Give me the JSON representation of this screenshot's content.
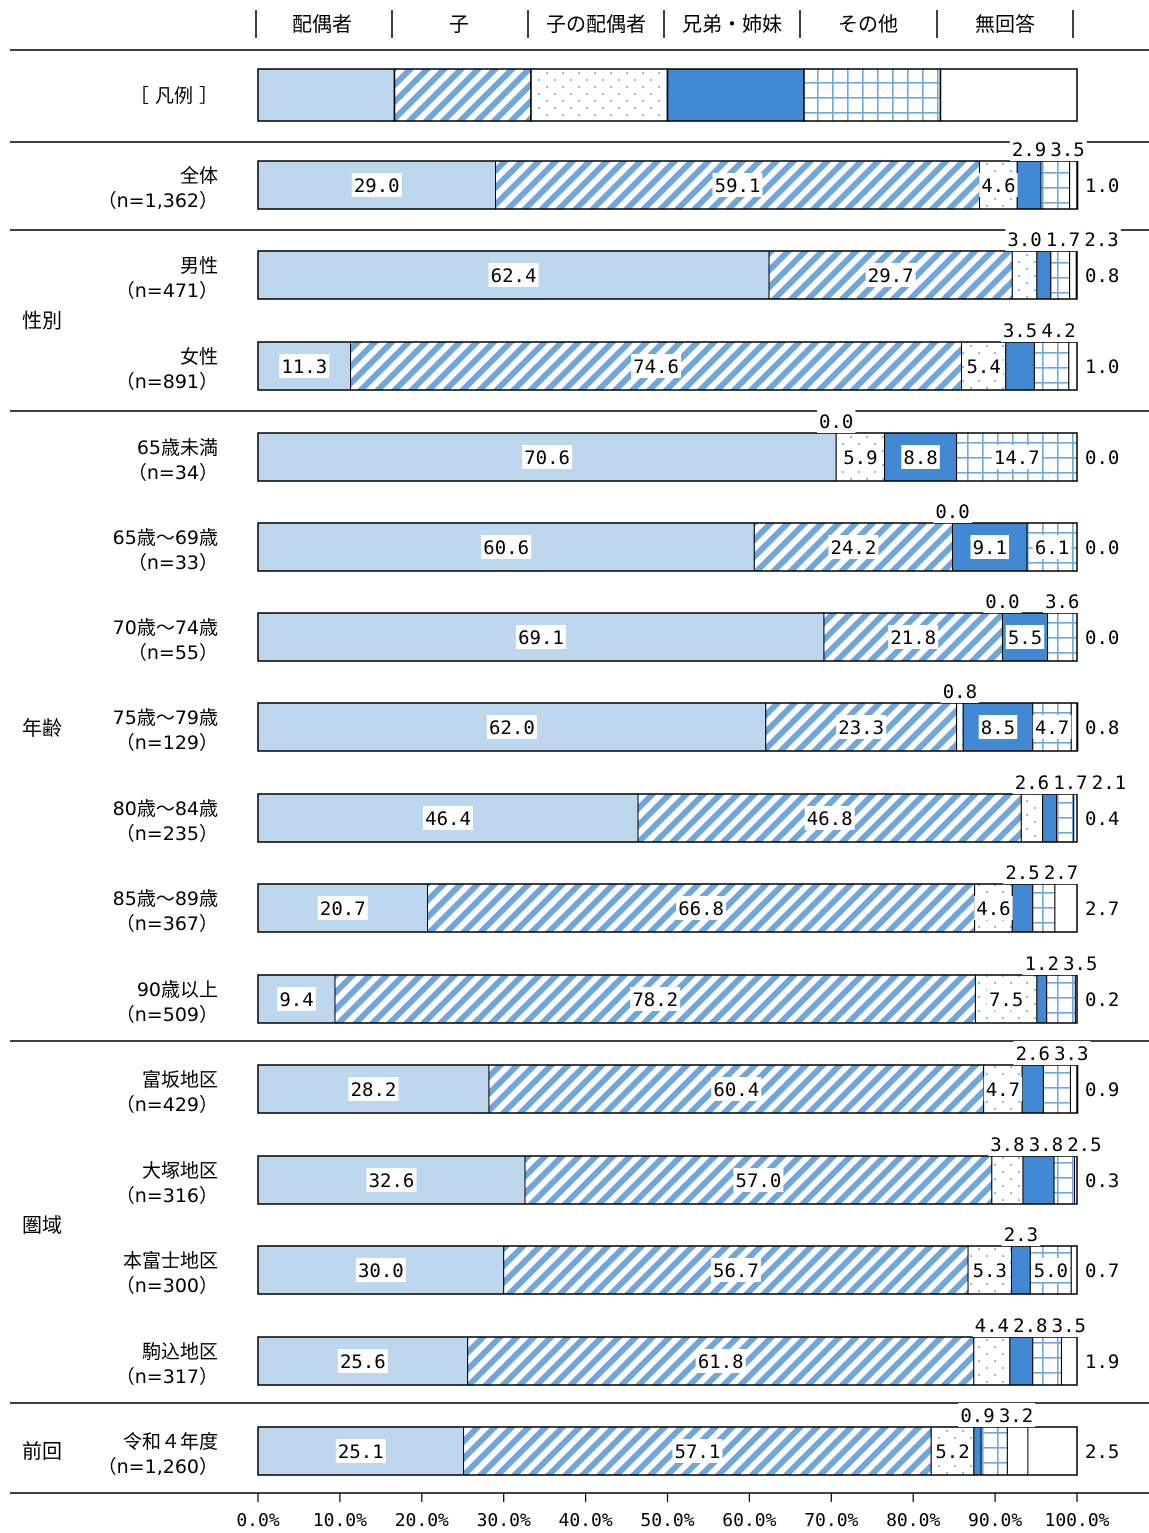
{
  "chart_data": {
    "type": "bar",
    "orientation": "horizontal",
    "stacked": true,
    "percent": true,
    "legend_title": "［ 凡例 ］",
    "legend_placement": "top",
    "categories_legend": [
      "配偶者",
      "子",
      "子の配偶者",
      "兄弟・姉妹",
      "その他",
      "無回答"
    ],
    "colors": {
      "light_blue": "#bdd7ee",
      "blue": "#4189d2",
      "stripe_blue": "#6fa6de",
      "outline": "#000000"
    },
    "xlim": [
      0,
      100
    ],
    "ticks": [
      "0.0%",
      "10.0%",
      "20.0%",
      "30.0%",
      "40.0%",
      "50.0%",
      "60.0%",
      "70.0%",
      "80.0%",
      "90.0%",
      "100.0%"
    ],
    "groups": [
      {
        "name": "",
        "rows": [
          0
        ]
      },
      {
        "name": "性別",
        "rows": [
          1,
          2
        ]
      },
      {
        "name": "年齢",
        "rows": [
          3,
          4,
          5,
          6,
          7,
          8,
          9
        ]
      },
      {
        "name": "圏域",
        "rows": [
          10,
          11,
          12,
          13
        ]
      },
      {
        "name": "前回",
        "rows": [
          14
        ]
      }
    ],
    "rows": [
      {
        "label": "全体",
        "n": "（n=1,362）",
        "values": [
          29.0,
          59.1,
          4.6,
          2.9,
          3.5,
          1.0
        ],
        "labels": [
          "29.0",
          "59.1",
          "4.6",
          "2.9",
          "3.5",
          "1.0"
        ]
      },
      {
        "label": "男性",
        "n": "（n=471）",
        "values": [
          62.4,
          29.7,
          3.0,
          1.7,
          2.3,
          0.8
        ],
        "labels": [
          "62.4",
          "29.7",
          "3.0",
          "1.7",
          "2.3",
          "0.8"
        ]
      },
      {
        "label": "女性",
        "n": "（n=891）",
        "values": [
          11.3,
          74.6,
          5.4,
          3.5,
          4.2,
          1.0
        ],
        "labels": [
          "11.3",
          "74.6",
          "5.4",
          "3.5",
          "4.2",
          "1.0"
        ]
      },
      {
        "label": "65歳未満",
        "n": "（n=34）",
        "values": [
          70.6,
          0.0,
          5.9,
          8.8,
          14.7,
          0.0
        ],
        "labels": [
          "70.6",
          "0.0",
          "5.9",
          "8.8",
          "14.7",
          "0.0"
        ]
      },
      {
        "label": "65歳～69歳",
        "n": "（n=33）",
        "values": [
          60.6,
          24.2,
          0.0,
          9.1,
          6.1,
          0.0
        ],
        "labels": [
          "60.6",
          "24.2",
          "0.0",
          "9.1",
          "6.1",
          "0.0"
        ]
      },
      {
        "label": "70歳～74歳",
        "n": "（n=55）",
        "values": [
          69.1,
          21.8,
          0.0,
          5.5,
          3.6,
          0.0
        ],
        "labels": [
          "69.1",
          "21.8",
          "0.0",
          "5.5",
          "3.6",
          "0.0"
        ]
      },
      {
        "label": "75歳～79歳",
        "n": "（n=129）",
        "values": [
          62.0,
          23.3,
          0.8,
          8.5,
          4.7,
          0.8
        ],
        "labels": [
          "62.0",
          "23.3",
          "0.8",
          "8.5",
          "4.7",
          "0.8"
        ]
      },
      {
        "label": "80歳～84歳",
        "n": "（n=235）",
        "values": [
          46.4,
          46.8,
          2.6,
          1.7,
          2.1,
          0.4
        ],
        "labels": [
          "46.4",
          "46.8",
          "2.6",
          "1.7",
          "2.1",
          "0.4"
        ]
      },
      {
        "label": "85歳～89歳",
        "n": "（n=367）",
        "values": [
          20.7,
          66.8,
          4.6,
          2.5,
          2.7,
          2.7
        ],
        "labels": [
          "20.7",
          "66.8",
          "4.6",
          "2.5",
          "2.7",
          "2.7"
        ]
      },
      {
        "label": "90歳以上",
        "n": "（n=509）",
        "values": [
          9.4,
          78.2,
          7.5,
          1.2,
          3.5,
          0.2
        ],
        "labels": [
          "9.4",
          "78.2",
          "7.5",
          "1.2",
          "3.5",
          "0.2"
        ]
      },
      {
        "label": "富坂地区",
        "n": "（n=429）",
        "values": [
          28.2,
          60.4,
          4.7,
          2.6,
          3.3,
          0.9
        ],
        "labels": [
          "28.2",
          "60.4",
          "4.7",
          "2.6",
          "3.3",
          "0.9"
        ]
      },
      {
        "label": "大塚地区",
        "n": "（n=316）",
        "values": [
          32.6,
          57.0,
          3.8,
          3.8,
          2.5,
          0.3
        ],
        "labels": [
          "32.6",
          "57.0",
          "3.8",
          "3.8",
          "2.5",
          "0.3"
        ]
      },
      {
        "label": "本富士地区",
        "n": "（n=300）",
        "values": [
          30.0,
          56.7,
          5.3,
          2.3,
          5.0,
          0.7
        ],
        "labels": [
          "30.0",
          "56.7",
          "5.3",
          "2.3",
          "5.0",
          "0.7"
        ]
      },
      {
        "label": "駒込地区",
        "n": "（n=317）",
        "values": [
          25.6,
          61.8,
          4.4,
          2.8,
          3.5,
          1.9
        ],
        "labels": [
          "25.6",
          "61.8",
          "4.4",
          "2.8",
          "3.5",
          "1.9"
        ]
      },
      {
        "label": "令和４年度",
        "n": "（n=1,260）",
        "values": [
          25.1,
          57.1,
          5.2,
          0.9,
          3.2,
          2.5
        ],
        "labels": [
          "25.1",
          "57.1",
          "5.2",
          "0.9",
          "3.2",
          "2.5"
        ]
      }
    ]
  }
}
